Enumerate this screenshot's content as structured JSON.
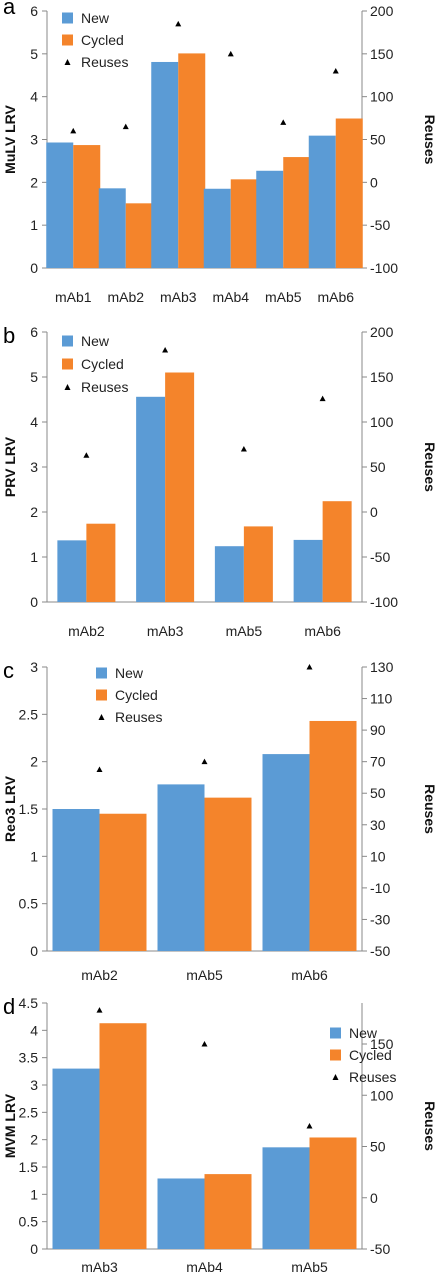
{
  "colors": {
    "new": "#5b9bd5",
    "cycled": "#f4842b",
    "reuses": "#000000",
    "axis": "#888888"
  },
  "chart_data": [
    {
      "type": "bar",
      "panel_label": "a",
      "categories": [
        "mAb1",
        "mAb2",
        "mAb3",
        "mAb4",
        "mAb5",
        "mAb6"
      ],
      "series": [
        {
          "name": "New",
          "values": [
            2.93,
            1.86,
            4.81,
            1.85,
            2.27,
            3.09
          ]
        },
        {
          "name": "Cycled",
          "values": [
            2.87,
            1.51,
            5.01,
            2.07,
            2.59,
            3.49
          ]
        }
      ],
      "secondary_series": {
        "name": "Reuses",
        "values": [
          60,
          65,
          185,
          150,
          70,
          130
        ]
      },
      "ylabel": "MuLV LRV",
      "y2label": "Reuses",
      "ylim": [
        0,
        6
      ],
      "y_ticks": [
        "0",
        "1",
        "2",
        "3",
        "4",
        "5",
        "6"
      ],
      "y2lim": [
        -100,
        200
      ],
      "y2_ticks": [
        "-100",
        "-50",
        "0",
        "50",
        "100",
        "150",
        "200"
      ],
      "legend": [
        "New",
        "Cycled",
        "Reuses"
      ],
      "legend_position": "top-left",
      "grid": false
    },
    {
      "type": "bar",
      "panel_label": "b",
      "categories": [
        "mAb2",
        "mAb3",
        "mAb5",
        "mAb6"
      ],
      "series": [
        {
          "name": "New",
          "values": [
            1.37,
            4.56,
            1.24,
            1.38
          ]
        },
        {
          "name": "Cycled",
          "values": [
            1.74,
            5.1,
            1.68,
            2.24
          ]
        }
      ],
      "secondary_series": {
        "name": "Reuses",
        "values": [
          63,
          180,
          70,
          126
        ]
      },
      "ylabel": "PRV LRV",
      "y2label": "Reuses",
      "ylim": [
        0,
        6
      ],
      "y_ticks": [
        "0",
        "1",
        "2",
        "3",
        "4",
        "5",
        "6"
      ],
      "y2lim": [
        -100,
        200
      ],
      "y2_ticks": [
        "-100",
        "-50",
        "0",
        "50",
        "100",
        "150",
        "200"
      ],
      "legend": [
        "New",
        "Cycled",
        "Reuses"
      ],
      "legend_position": "top-left",
      "grid": false
    },
    {
      "type": "bar",
      "panel_label": "c",
      "categories": [
        "mAb2",
        "mAb5",
        "mAb6"
      ],
      "series": [
        {
          "name": "New",
          "values": [
            1.5,
            1.76,
            2.08
          ]
        },
        {
          "name": "Cycled",
          "values": [
            1.45,
            1.62,
            2.43
          ]
        }
      ],
      "secondary_series": {
        "name": "Reuses",
        "values": [
          65,
          70,
          130
        ]
      },
      "ylabel": "Reo3 LRV",
      "y2label": "Reuses",
      "ylim": [
        0,
        3
      ],
      "y_ticks": [
        "0",
        "0.5",
        "1",
        "1.5",
        "2",
        "2.5",
        "3"
      ],
      "y2lim": [
        -50,
        130
      ],
      "y2_ticks": [
        "-50",
        "-30",
        "-10",
        "10",
        "30",
        "50",
        "70",
        "90",
        "110",
        "130"
      ],
      "legend": [
        "New",
        "Cycled",
        "Reuses"
      ],
      "legend_position": "top-left",
      "grid": false
    },
    {
      "type": "bar",
      "panel_label": "d",
      "categories": [
        "mAb3",
        "mAb4",
        "mAb5"
      ],
      "series": [
        {
          "name": "New",
          "values": [
            3.3,
            1.29,
            1.86
          ]
        },
        {
          "name": "Cycled",
          "values": [
            4.13,
            1.37,
            2.04
          ]
        }
      ],
      "secondary_series": {
        "name": "Reuses",
        "values": [
          183,
          150,
          70
        ]
      },
      "ylabel": "MVM LRV",
      "y2label": "Reuses",
      "ylim": [
        0,
        4.5
      ],
      "y_ticks": [
        "0",
        "0.5",
        "1",
        "1.5",
        "2",
        "2.5",
        "3",
        "3.5",
        "4",
        "4.5"
      ],
      "y2lim": [
        -50,
        190
      ],
      "y2_ticks": [
        "-50",
        "0",
        "50",
        "100",
        "150"
      ],
      "y2_tick_values": [
        -50,
        0,
        50,
        100,
        150
      ],
      "legend": [
        "New",
        "Cycled",
        "Reuses"
      ],
      "legend_position": "top-right",
      "grid": false
    }
  ]
}
